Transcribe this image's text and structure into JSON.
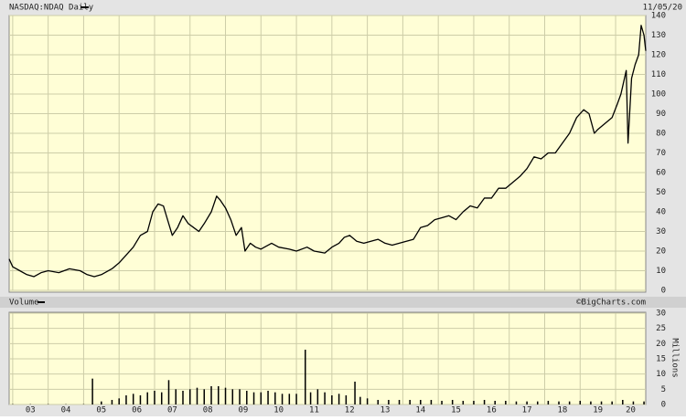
{
  "chart_data": [
    {
      "type": "line",
      "title": "NASDAQ:NDAQ Daily",
      "date": "11/05/20",
      "xlim": [
        2002.9,
        2020.85
      ],
      "ylim": [
        0,
        140
      ],
      "yticks": [
        0,
        10,
        20,
        30,
        40,
        50,
        60,
        70,
        80,
        90,
        100,
        110,
        120,
        130,
        140
      ],
      "grid": true,
      "x": [
        2002.9,
        2003.0,
        2003.2,
        2003.4,
        2003.6,
        2003.8,
        2004.0,
        2004.3,
        2004.6,
        2004.9,
        2005.1,
        2005.3,
        2005.5,
        2005.8,
        2006.0,
        2006.2,
        2006.4,
        2006.6,
        2006.8,
        2006.95,
        2007.1,
        2007.25,
        2007.4,
        2007.5,
        2007.65,
        2007.8,
        2007.95,
        2008.1,
        2008.25,
        2008.4,
        2008.6,
        2008.75,
        2008.85,
        2009.0,
        2009.15,
        2009.3,
        2009.45,
        2009.55,
        2009.7,
        2009.85,
        2010.0,
        2010.3,
        2010.5,
        2010.8,
        2011.0,
        2011.3,
        2011.5,
        2011.8,
        2012.0,
        2012.2,
        2012.35,
        2012.5,
        2012.7,
        2012.9,
        2013.1,
        2013.3,
        2013.5,
        2013.7,
        2013.9,
        2014.1,
        2014.3,
        2014.5,
        2014.7,
        2014.9,
        2015.1,
        2015.3,
        2015.5,
        2015.7,
        2015.9,
        2016.1,
        2016.3,
        2016.5,
        2016.7,
        2016.9,
        2017.1,
        2017.3,
        2017.5,
        2017.7,
        2017.9,
        2018.1,
        2018.3,
        2018.5,
        2018.7,
        2018.9,
        2019.1,
        2019.25,
        2019.4,
        2019.5,
        2019.7,
        2019.9,
        2020.05,
        2020.15,
        2020.3,
        2020.35,
        2020.45,
        2020.55,
        2020.65,
        2020.72,
        2020.8,
        2020.85
      ],
      "series": [
        {
          "color": "#000000",
          "values": [
            16,
            12,
            10,
            8,
            7,
            9,
            10,
            9,
            11,
            10,
            8,
            7,
            8,
            11,
            14,
            18,
            22,
            28,
            30,
            40,
            44,
            43,
            34,
            28,
            32,
            38,
            34,
            32,
            30,
            34,
            40,
            48,
            46,
            42,
            36,
            28,
            32,
            20,
            24,
            22,
            21,
            24,
            22,
            21,
            20,
            22,
            20,
            19,
            22,
            24,
            27,
            28,
            25,
            24,
            25,
            26,
            24,
            23,
            24,
            25,
            26,
            32,
            33,
            36,
            37,
            38,
            36,
            40,
            43,
            42,
            47,
            47,
            52,
            52,
            55,
            58,
            62,
            68,
            67,
            70,
            70,
            75,
            80,
            88,
            92,
            90,
            80,
            82,
            85,
            88,
            95,
            100,
            112,
            75,
            108,
            115,
            120,
            135,
            130,
            122
          ]
        }
      ]
    },
    {
      "type": "bar",
      "title": "Volume",
      "credit": "©BigCharts.com",
      "y_label": "Millions",
      "xlim": [
        2002.9,
        2020.85
      ],
      "ylim": [
        0,
        30
      ],
      "yticks": [
        0,
        5,
        10,
        15,
        20,
        25,
        30
      ],
      "xticks": [
        {
          "value": 2003,
          "label": "03"
        },
        {
          "value": 2004,
          "label": "04"
        },
        {
          "value": 2005,
          "label": "05"
        },
        {
          "value": 2006,
          "label": "06"
        },
        {
          "value": 2007,
          "label": "07"
        },
        {
          "value": 2008,
          "label": "08"
        },
        {
          "value": 2009,
          "label": "09"
        },
        {
          "value": 2010,
          "label": "10"
        },
        {
          "value": 2011,
          "label": "11"
        },
        {
          "value": 2012,
          "label": "12"
        },
        {
          "value": 2013,
          "label": "13"
        },
        {
          "value": 2014,
          "label": "14"
        },
        {
          "value": 2015,
          "label": "15"
        },
        {
          "value": 2016,
          "label": "16"
        },
        {
          "value": 2017,
          "label": "17"
        },
        {
          "value": 2018,
          "label": "18"
        },
        {
          "value": 2019,
          "label": "19"
        },
        {
          "value": 2020,
          "label": "20"
        }
      ],
      "grid": true,
      "color": "#000000",
      "x": [
        2003.0,
        2003.5,
        2004.0,
        2004.5,
        2005.0,
        2005.25,
        2005.5,
        2005.8,
        2006.0,
        2006.2,
        2006.4,
        2006.6,
        2006.8,
        2007.0,
        2007.2,
        2007.4,
        2007.6,
        2007.8,
        2008.0,
        2008.2,
        2008.4,
        2008.6,
        2008.8,
        2009.0,
        2009.2,
        2009.4,
        2009.6,
        2009.8,
        2010.0,
        2010.2,
        2010.4,
        2010.6,
        2010.8,
        2011.0,
        2011.25,
        2011.4,
        2011.6,
        2011.8,
        2012.0,
        2012.2,
        2012.4,
        2012.65,
        2012.8,
        2013.0,
        2013.3,
        2013.6,
        2013.9,
        2014.2,
        2014.5,
        2014.8,
        2015.1,
        2015.4,
        2015.7,
        2016.0,
        2016.3,
        2016.6,
        2016.9,
        2017.2,
        2017.5,
        2017.8,
        2018.1,
        2018.4,
        2018.7,
        2019.0,
        2019.3,
        2019.6,
        2019.9,
        2020.2,
        2020.5,
        2020.8
      ],
      "values": [
        0.1,
        0.1,
        0.1,
        0.1,
        0.1,
        8.5,
        1,
        1.5,
        2,
        3,
        3.5,
        3,
        4,
        4.5,
        4,
        8,
        5,
        4.5,
        5,
        5.5,
        5,
        6,
        6,
        5.5,
        5,
        5,
        4.5,
        4,
        4,
        4.5,
        4,
        3.5,
        3.5,
        3.5,
        18,
        4,
        5,
        4,
        3,
        3.5,
        3,
        7.5,
        2.5,
        2,
        1.5,
        1.5,
        1.5,
        1.5,
        1.5,
        1.5,
        1.2,
        1.5,
        1.2,
        1.2,
        1.5,
        1.2,
        1.2,
        1,
        1,
        1,
        1.2,
        1,
        1,
        1.2,
        1,
        1,
        1,
        1.5,
        1,
        1
      ]
    }
  ]
}
